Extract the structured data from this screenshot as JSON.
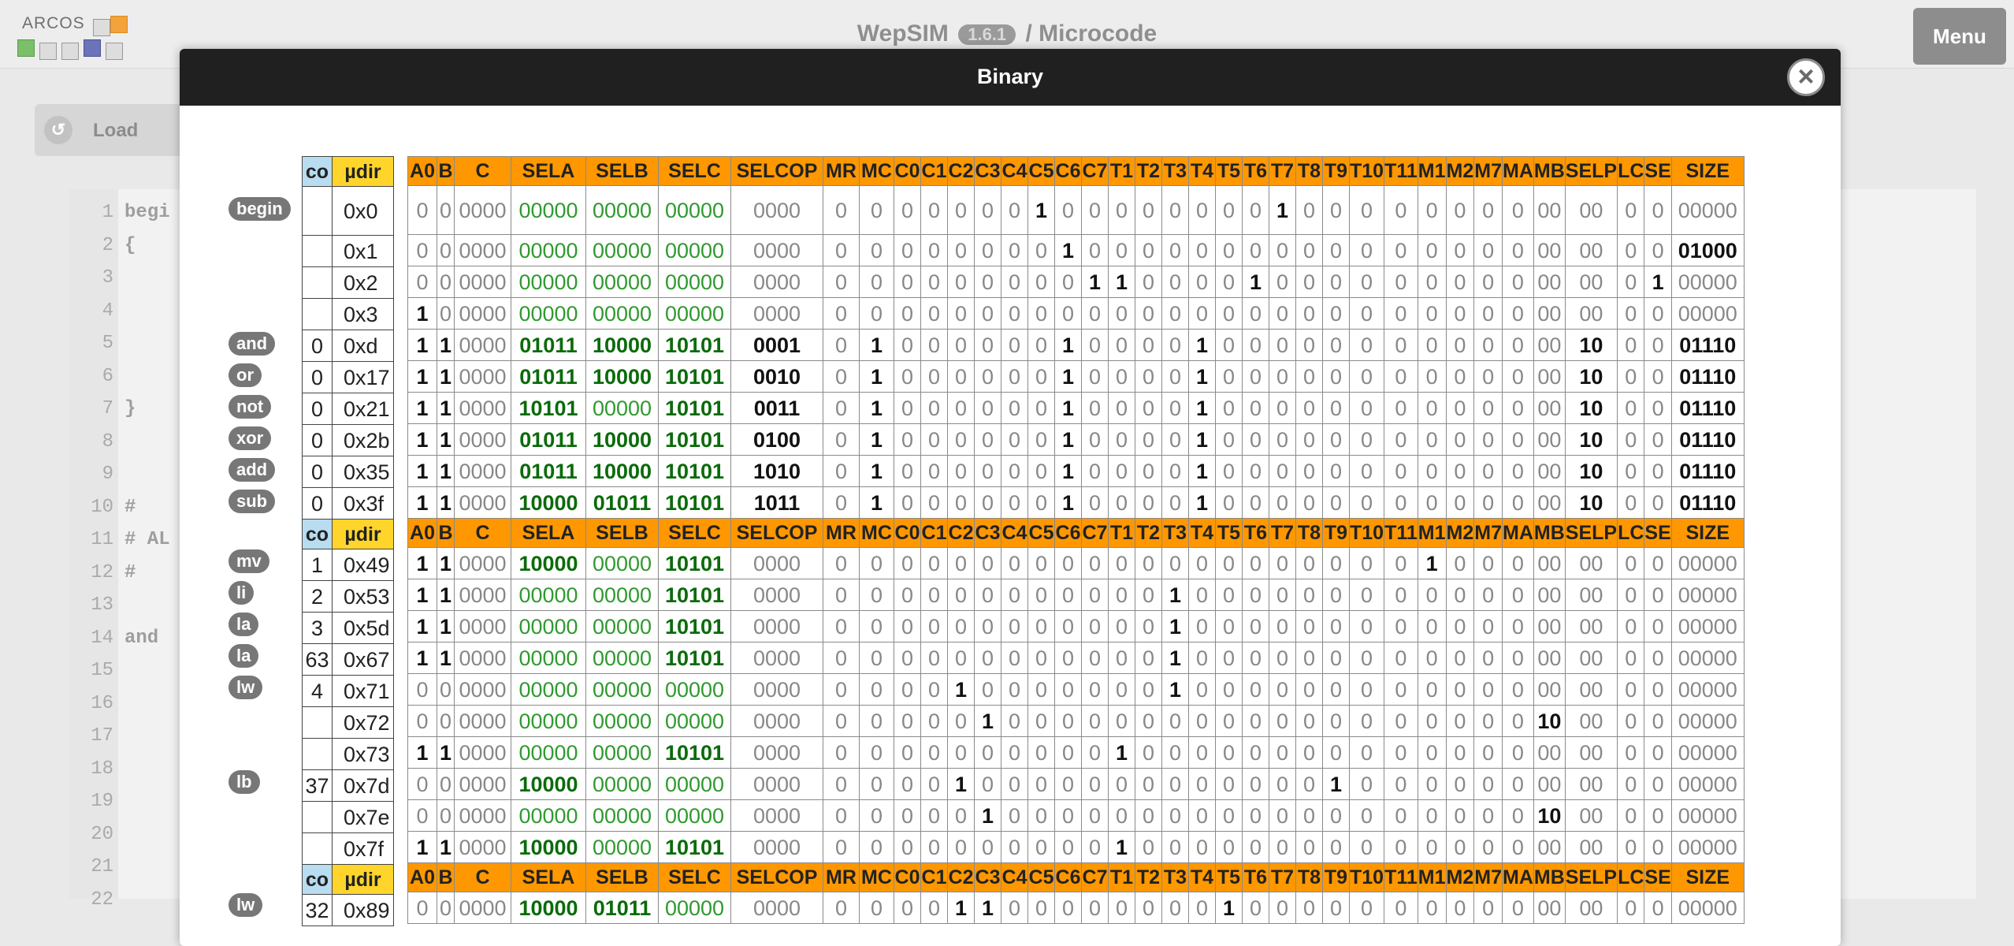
{
  "app": {
    "logo_text": "ARCOS",
    "title_prefix": "WepSIM",
    "version": "1.6.1",
    "title_suffix": "/ Microcode",
    "menu_label": "Menu",
    "load_label": "Load"
  },
  "editor": {
    "line_numbers": [
      "1",
      "2",
      "3",
      "4",
      "5",
      "6",
      "7",
      "8",
      "9",
      "10",
      "11",
      "12",
      "13",
      "14",
      "15",
      "16",
      "17",
      "18",
      "19",
      "20",
      "21",
      "22"
    ],
    "visible_code": {
      "1": "begi",
      "2": "{",
      "7": "}",
      "10": "#",
      "11": "# AL",
      "12": "#",
      "14": "and"
    }
  },
  "modal": {
    "title": "Binary",
    "close_icon": "close-icon",
    "header_labels": [
      "A0",
      "B",
      "C",
      "SELA",
      "SELB",
      "SELC",
      "SELCOP",
      "MR",
      "MC",
      "C0",
      "C1",
      "C2",
      "C3",
      "C4",
      "C5",
      "C6",
      "C7",
      "T1",
      "T2",
      "T3",
      "T4",
      "T5",
      "T6",
      "T7",
      "T8",
      "T9",
      "T10",
      "T11",
      "M1",
      "M2",
      "M7",
      "MA",
      "MB",
      "SELP",
      "LC",
      "SE",
      "SIZE"
    ],
    "co_label": "co",
    "mu_label": "µdir",
    "colors": {
      "header": "#ff9800",
      "co_header": "#b8dcf0",
      "mu_header": "#ffd52b",
      "binary_green": "#0a6b0a"
    },
    "rows": [
      {
        "type": "header"
      },
      {
        "label": "begin",
        "co": "",
        "mu": "0x0",
        "bits": "000000000000000000000000000000001000000001000000000000000000000000000000"
      },
      {
        "label": "",
        "co": "",
        "mu": "0x1",
        "bits": "00000000000000000000000000000000010000000000000000000000010000000000000000"
      },
      {
        "label": "",
        "co": "",
        "mu": "0x2",
        "bits": "00000000000000000000000000000000001100001000000000000001000000000000000000"
      },
      {
        "label": "",
        "co": "",
        "mu": "0x3",
        "bits": "10000000000000000000000000000000000000000000000000000000000000000000000000"
      },
      {
        "label": "and",
        "co": "0",
        "mu": "0xd",
        "bits": "11000001011100001010100010100000010000100000000000001000011100000000000000"
      },
      {
        "label": "or",
        "co": "0",
        "mu": "0x17",
        "bits": "11000001011100001010100100100000010000100000000000001000011100000000000000"
      },
      {
        "label": "not",
        "co": "0",
        "mu": "0x21",
        "bits": "11000010101000001010100110100000010000100000000000001000011100000000000000"
      },
      {
        "label": "xor",
        "co": "0",
        "mu": "0x2b",
        "bits": "11000001011100001010101000100000010000100000000000001000011100000000000000"
      },
      {
        "label": "add",
        "co": "0",
        "mu": "0x35",
        "bits": "11000001011100001010110100100000010000100000000000001000011100000000000000"
      },
      {
        "label": "sub",
        "co": "0",
        "mu": "0x3f",
        "bits": "11000010000010111010110110100000010000100000000000001000011100000000000000"
      },
      {
        "type": "header"
      },
      {
        "label": "mv",
        "co": "1",
        "mu": "0x49",
        "bits": "11000010000000001010100000000000000000000000001000000000000000100000000000"
      },
      {
        "label": "li",
        "co": "2",
        "mu": "0x53",
        "bits": "11000000000000001010100000000000000001000000000000000000000001110000000000"
      },
      {
        "label": "la",
        "co": "3",
        "mu": "0x5d",
        "bits": "11000000000000001010100000000000000001000000000000000000000001010000000000"
      },
      {
        "label": "la",
        "co": "63",
        "mu": "0x67",
        "bits": "11000000000000001010100000000000000001000000000000000000000001010000000000"
      },
      {
        "label": "lw",
        "co": "4",
        "mu": "0x71",
        "bits": "00000000000000000000000000000100000001000000000000000000000000010000000000"
      },
      {
        "label": "",
        "co": "",
        "mu": "0x72",
        "bits": "00000000000000000000000000000010000000000000000000100000000000000000000000"
      },
      {
        "label": "",
        "co": "",
        "mu": "0x73",
        "bits": "11000000000000001010100000000000000100000000000000000000000001000000000000"
      },
      {
        "label": "lb",
        "co": "37",
        "mu": "0x7d",
        "bits": "00000010000000000000000000000100000000000001000000000000000000000000000000"
      },
      {
        "label": "",
        "co": "",
        "mu": "0x7e",
        "bits": "00000000000000000000000000000010000000000000000000100000000000000000000000"
      },
      {
        "label": "",
        "co": "",
        "mu": "0x7f",
        "bits": "11000010000000001010100000000000000100000000000000000000000001100000000000"
      },
      {
        "type": "header"
      },
      {
        "label": "lw",
        "co": "32",
        "mu": "0x89",
        "bits": "00000010000010110000000000000110000000010000000000000000000000000000000000"
      }
    ]
  }
}
